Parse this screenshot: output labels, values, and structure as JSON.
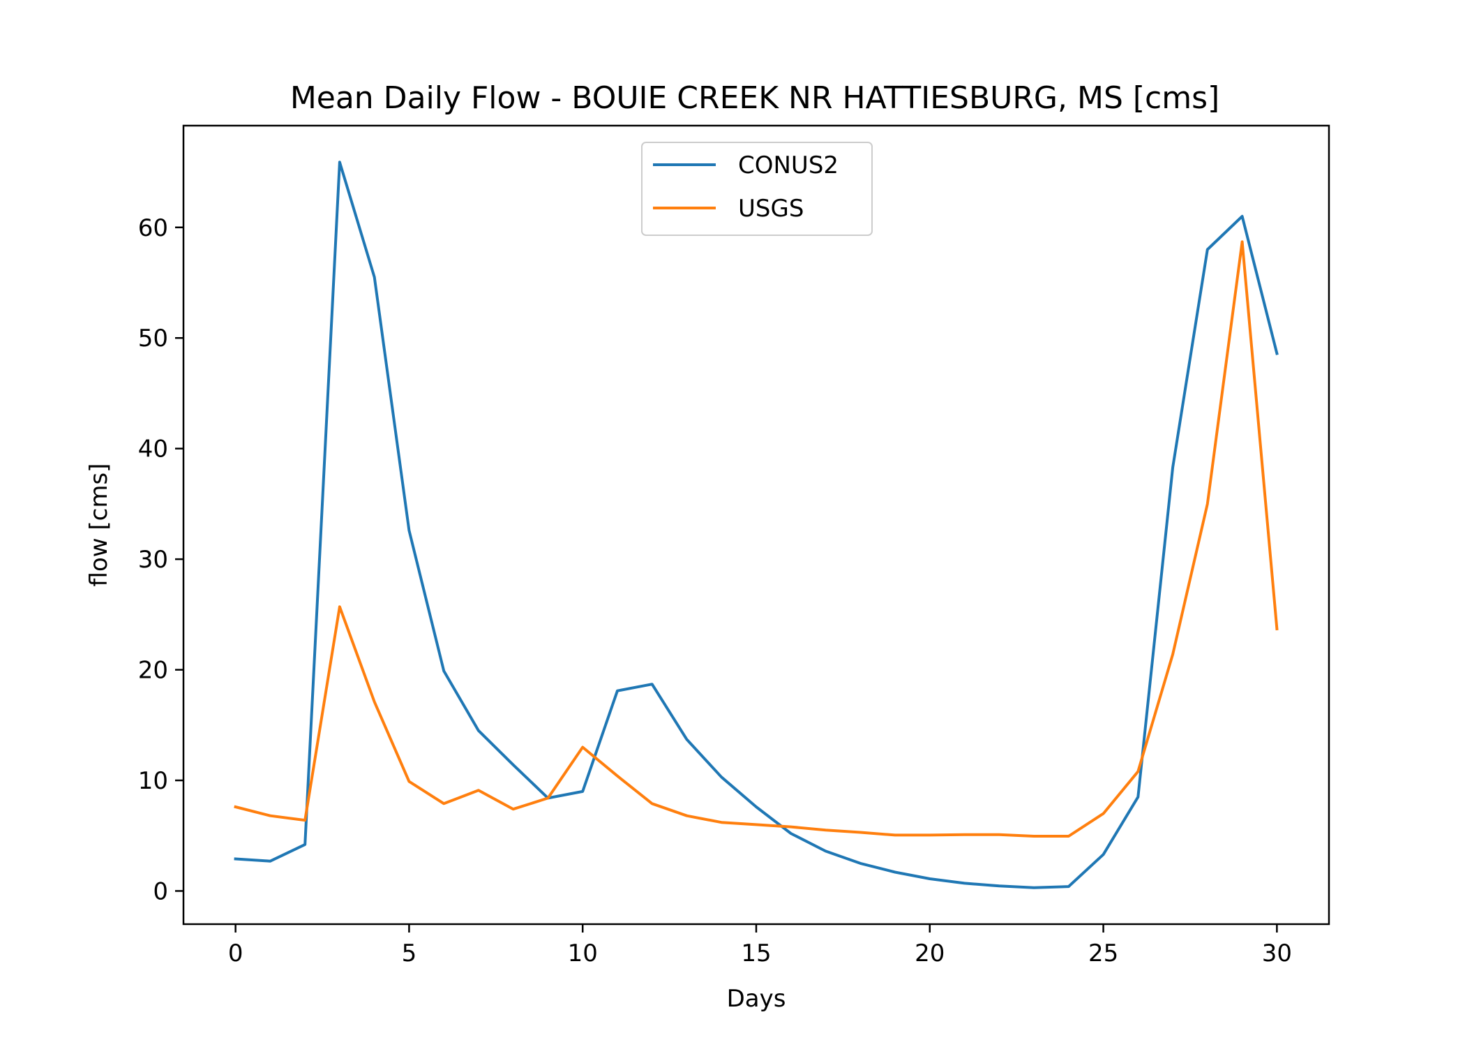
{
  "chart_data": {
    "type": "line",
    "title": "Mean Daily Flow - BOUIE CREEK NR HATTIESBURG, MS [cms]",
    "xlabel": "Days",
    "ylabel": "flow [cms]",
    "xlim": [
      -1.5,
      31.5
    ],
    "ylim": [
      -3.0,
      69.2
    ],
    "xticks": [
      0,
      5,
      10,
      15,
      20,
      25,
      30
    ],
    "yticks": [
      0,
      10,
      20,
      30,
      40,
      50,
      60
    ],
    "grid": false,
    "legend": "upper center",
    "x": [
      0,
      1,
      2,
      3,
      4,
      5,
      6,
      7,
      8,
      9,
      10,
      11,
      12,
      13,
      14,
      15,
      16,
      17,
      18,
      19,
      20,
      21,
      22,
      23,
      24,
      25,
      26,
      27,
      28,
      29,
      30
    ],
    "series": [
      {
        "name": "CONUS2",
        "color": "#1f77b4",
        "values": [
          2.9,
          2.7,
          4.2,
          65.9,
          55.5,
          32.6,
          19.9,
          14.5,
          11.4,
          8.4,
          9.0,
          18.1,
          18.7,
          13.7,
          10.3,
          7.6,
          5.2,
          3.6,
          2.5,
          1.7,
          1.1,
          0.7,
          0.45,
          0.3,
          0.4,
          3.3,
          8.5,
          38.3,
          58.0,
          61.0,
          48.6
        ]
      },
      {
        "name": "USGS",
        "color": "#ff7f0e",
        "values": [
          7.6,
          6.8,
          6.4,
          25.7,
          17.1,
          9.9,
          7.9,
          9.1,
          7.4,
          8.4,
          13.0,
          10.4,
          7.9,
          6.8,
          6.2,
          6.0,
          5.8,
          5.5,
          5.3,
          5.05,
          5.05,
          5.1,
          5.1,
          4.95,
          4.95,
          7.0,
          10.8,
          21.4,
          35.0,
          58.7,
          23.7
        ]
      }
    ]
  }
}
